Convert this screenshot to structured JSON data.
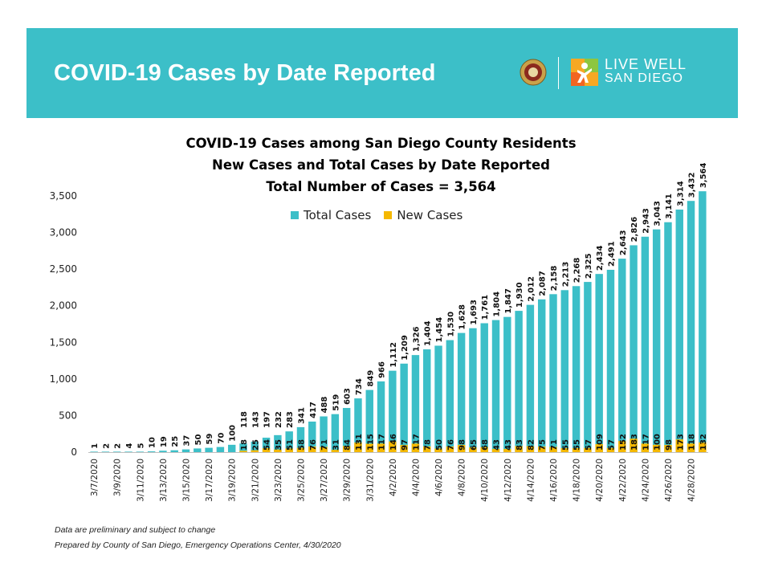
{
  "header": {
    "title": "COVID-19 Cases by Date Reported",
    "brand_line1": "LIVE WELL",
    "brand_line2": "SAN DIEGO",
    "banner_color": "#3cbfc8"
  },
  "chart_data": {
    "type": "bar",
    "title": "COVID-19 Cases among San Diego County Residents",
    "subtitle": "New Cases and Total Cases by Date Reported",
    "subtitle2": "Total Number of Cases = 3,564",
    "legend_position": "top-center",
    "ylim": [
      0,
      3500
    ],
    "yticks": [
      "0",
      "500",
      "1,000",
      "1,500",
      "2,000",
      "2,500",
      "3,000",
      "3,500"
    ],
    "categories": [
      "3/7/2020",
      "3/8/2020",
      "3/9/2020",
      "3/10/2020",
      "3/11/2020",
      "3/12/2020",
      "3/13/2020",
      "3/14/2020",
      "3/15/2020",
      "3/16/2020",
      "3/17/2020",
      "3/18/2020",
      "3/19/2020",
      "3/20/2020",
      "3/21/2020",
      "3/22/2020",
      "3/23/2020",
      "3/24/2020",
      "3/25/2020",
      "3/26/2020",
      "3/27/2020",
      "3/28/2020",
      "3/29/2020",
      "3/30/2020",
      "3/31/2020",
      "4/1/2020",
      "4/2/2020",
      "4/3/2020",
      "4/4/2020",
      "4/5/2020",
      "4/6/2020",
      "4/7/2020",
      "4/8/2020",
      "4/9/2020",
      "4/10/2020",
      "4/11/2020",
      "4/12/2020",
      "4/13/2020",
      "4/14/2020",
      "4/15/2020",
      "4/16/2020",
      "4/17/2020",
      "4/18/2020",
      "4/19/2020",
      "4/20/2020",
      "4/21/2020",
      "4/22/2020",
      "4/23/2020",
      "4/24/2020",
      "4/25/2020",
      "4/26/2020",
      "4/27/2020",
      "4/28/2020",
      "4/29/2020"
    ],
    "xtick_labels_shown": [
      "3/7/2020",
      "3/9/2020",
      "3/11/2020",
      "3/13/2020",
      "3/15/2020",
      "3/17/2020",
      "3/19/2020",
      "3/21/2020",
      "3/23/2020",
      "3/25/2020",
      "3/27/2020",
      "3/29/2020",
      "3/31/2020",
      "4/2/2020",
      "4/4/2020",
      "4/6/2020",
      "4/8/2020",
      "4/10/2020",
      "4/12/2020",
      "4/14/2020",
      "4/16/2020",
      "4/18/2020",
      "4/20/2020",
      "4/22/2020",
      "4/24/2020",
      "4/26/2020",
      "4/28/2020"
    ],
    "series": [
      {
        "name": "Total Cases",
        "color": "#3cbfc8",
        "values": [
          1,
          2,
          2,
          4,
          5,
          10,
          19,
          25,
          37,
          50,
          59,
          70,
          100,
          118,
          143,
          197,
          232,
          283,
          341,
          417,
          488,
          519,
          603,
          734,
          849,
          966,
          1112,
          1209,
          1326,
          1404,
          1454,
          1530,
          1628,
          1693,
          1761,
          1804,
          1847,
          1930,
          2012,
          2087,
          2158,
          2213,
          2268,
          2325,
          2434,
          2491,
          2643,
          2826,
          2943,
          3043,
          3141,
          3314,
          3432,
          3564
        ],
        "labels": [
          "1",
          "2",
          "2",
          "4",
          "5",
          "10",
          "19",
          "25",
          "37",
          "50",
          "59",
          "70",
          "100",
          "118",
          "143",
          "197",
          "232",
          "283",
          "341",
          "417",
          "488",
          "519",
          "603",
          "734",
          "849",
          "966",
          "1,112",
          "1,209",
          "1,326",
          "1,404",
          "1,454",
          "1,530",
          "1,628",
          "1,693",
          "1,761",
          "1,804",
          "1,847",
          "1,930",
          "2,012",
          "2,087",
          "2,158",
          "2,213",
          "2,268",
          "2,325",
          "2,434",
          "2,491",
          "2,643",
          "2,826",
          "2,943",
          "3,043",
          "3,141",
          "3,314",
          "3,432",
          "3,564"
        ]
      },
      {
        "name": "New Cases",
        "color": "#f5b800",
        "values": [
          null,
          null,
          null,
          null,
          null,
          null,
          null,
          null,
          null,
          null,
          null,
          null,
          null,
          18,
          25,
          54,
          35,
          51,
          58,
          76,
          71,
          31,
          84,
          131,
          115,
          117,
          146,
          97,
          117,
          78,
          50,
          76,
          98,
          65,
          68,
          43,
          43,
          83,
          82,
          75,
          71,
          55,
          55,
          57,
          109,
          57,
          152,
          183,
          117,
          100,
          98,
          173,
          118,
          132
        ],
        "labels": [
          "",
          "",
          "",
          "",
          "",
          "",
          "",
          "",
          "",
          "",
          "",
          "",
          "",
          "18",
          "25",
          "54",
          "35",
          "51",
          "58",
          "76",
          "71",
          "31",
          "84",
          "131",
          "115",
          "117",
          "146",
          "97",
          "117",
          "78",
          "50",
          "76",
          "98",
          "65",
          "68",
          "43",
          "43",
          "83",
          "82",
          "75",
          "71",
          "55",
          "55",
          "57",
          "109",
          "57",
          "152",
          "183",
          "117",
          "100",
          "98",
          "173",
          "118",
          "132"
        ]
      }
    ]
  },
  "footer": {
    "line1": "Data are preliminary and subject to change",
    "line2": "Prepared by County of San Diego, Emergency Operations Center, 4/30/2020"
  }
}
